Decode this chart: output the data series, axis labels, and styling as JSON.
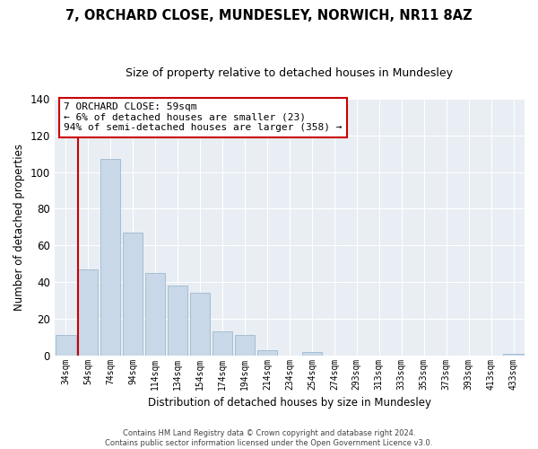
{
  "title": "7, ORCHARD CLOSE, MUNDESLEY, NORWICH, NR11 8AZ",
  "subtitle": "Size of property relative to detached houses in Mundesley",
  "xlabel": "Distribution of detached houses by size in Mundesley",
  "ylabel": "Number of detached properties",
  "bar_labels": [
    "34sqm",
    "54sqm",
    "74sqm",
    "94sqm",
    "114sqm",
    "134sqm",
    "154sqm",
    "174sqm",
    "194sqm",
    "214sqm",
    "234sqm",
    "254sqm",
    "274sqm",
    "293sqm",
    "313sqm",
    "333sqm",
    "353sqm",
    "373sqm",
    "393sqm",
    "413sqm",
    "433sqm"
  ],
  "bar_values": [
    11,
    47,
    107,
    67,
    45,
    38,
    34,
    13,
    11,
    3,
    0,
    2,
    0,
    0,
    0,
    0,
    0,
    0,
    0,
    0,
    1
  ],
  "bar_color": "#c8d8e8",
  "bar_edge_color": "#a0b8cc",
  "highlight_color": "#cc0000",
  "ylim": [
    0,
    140
  ],
  "yticks": [
    0,
    20,
    40,
    60,
    80,
    100,
    120,
    140
  ],
  "annotation_text_line1": "7 ORCHARD CLOSE: 59sqm",
  "annotation_text_line2": "← 6% of detached houses are smaller (23)",
  "annotation_text_line3": "94% of semi-detached houses are larger (358) →",
  "footer_line1": "Contains HM Land Registry data © Crown copyright and database right 2024.",
  "footer_line2": "Contains public sector information licensed under the Open Government Licence v3.0.",
  "bg_color": "#e8eef4"
}
